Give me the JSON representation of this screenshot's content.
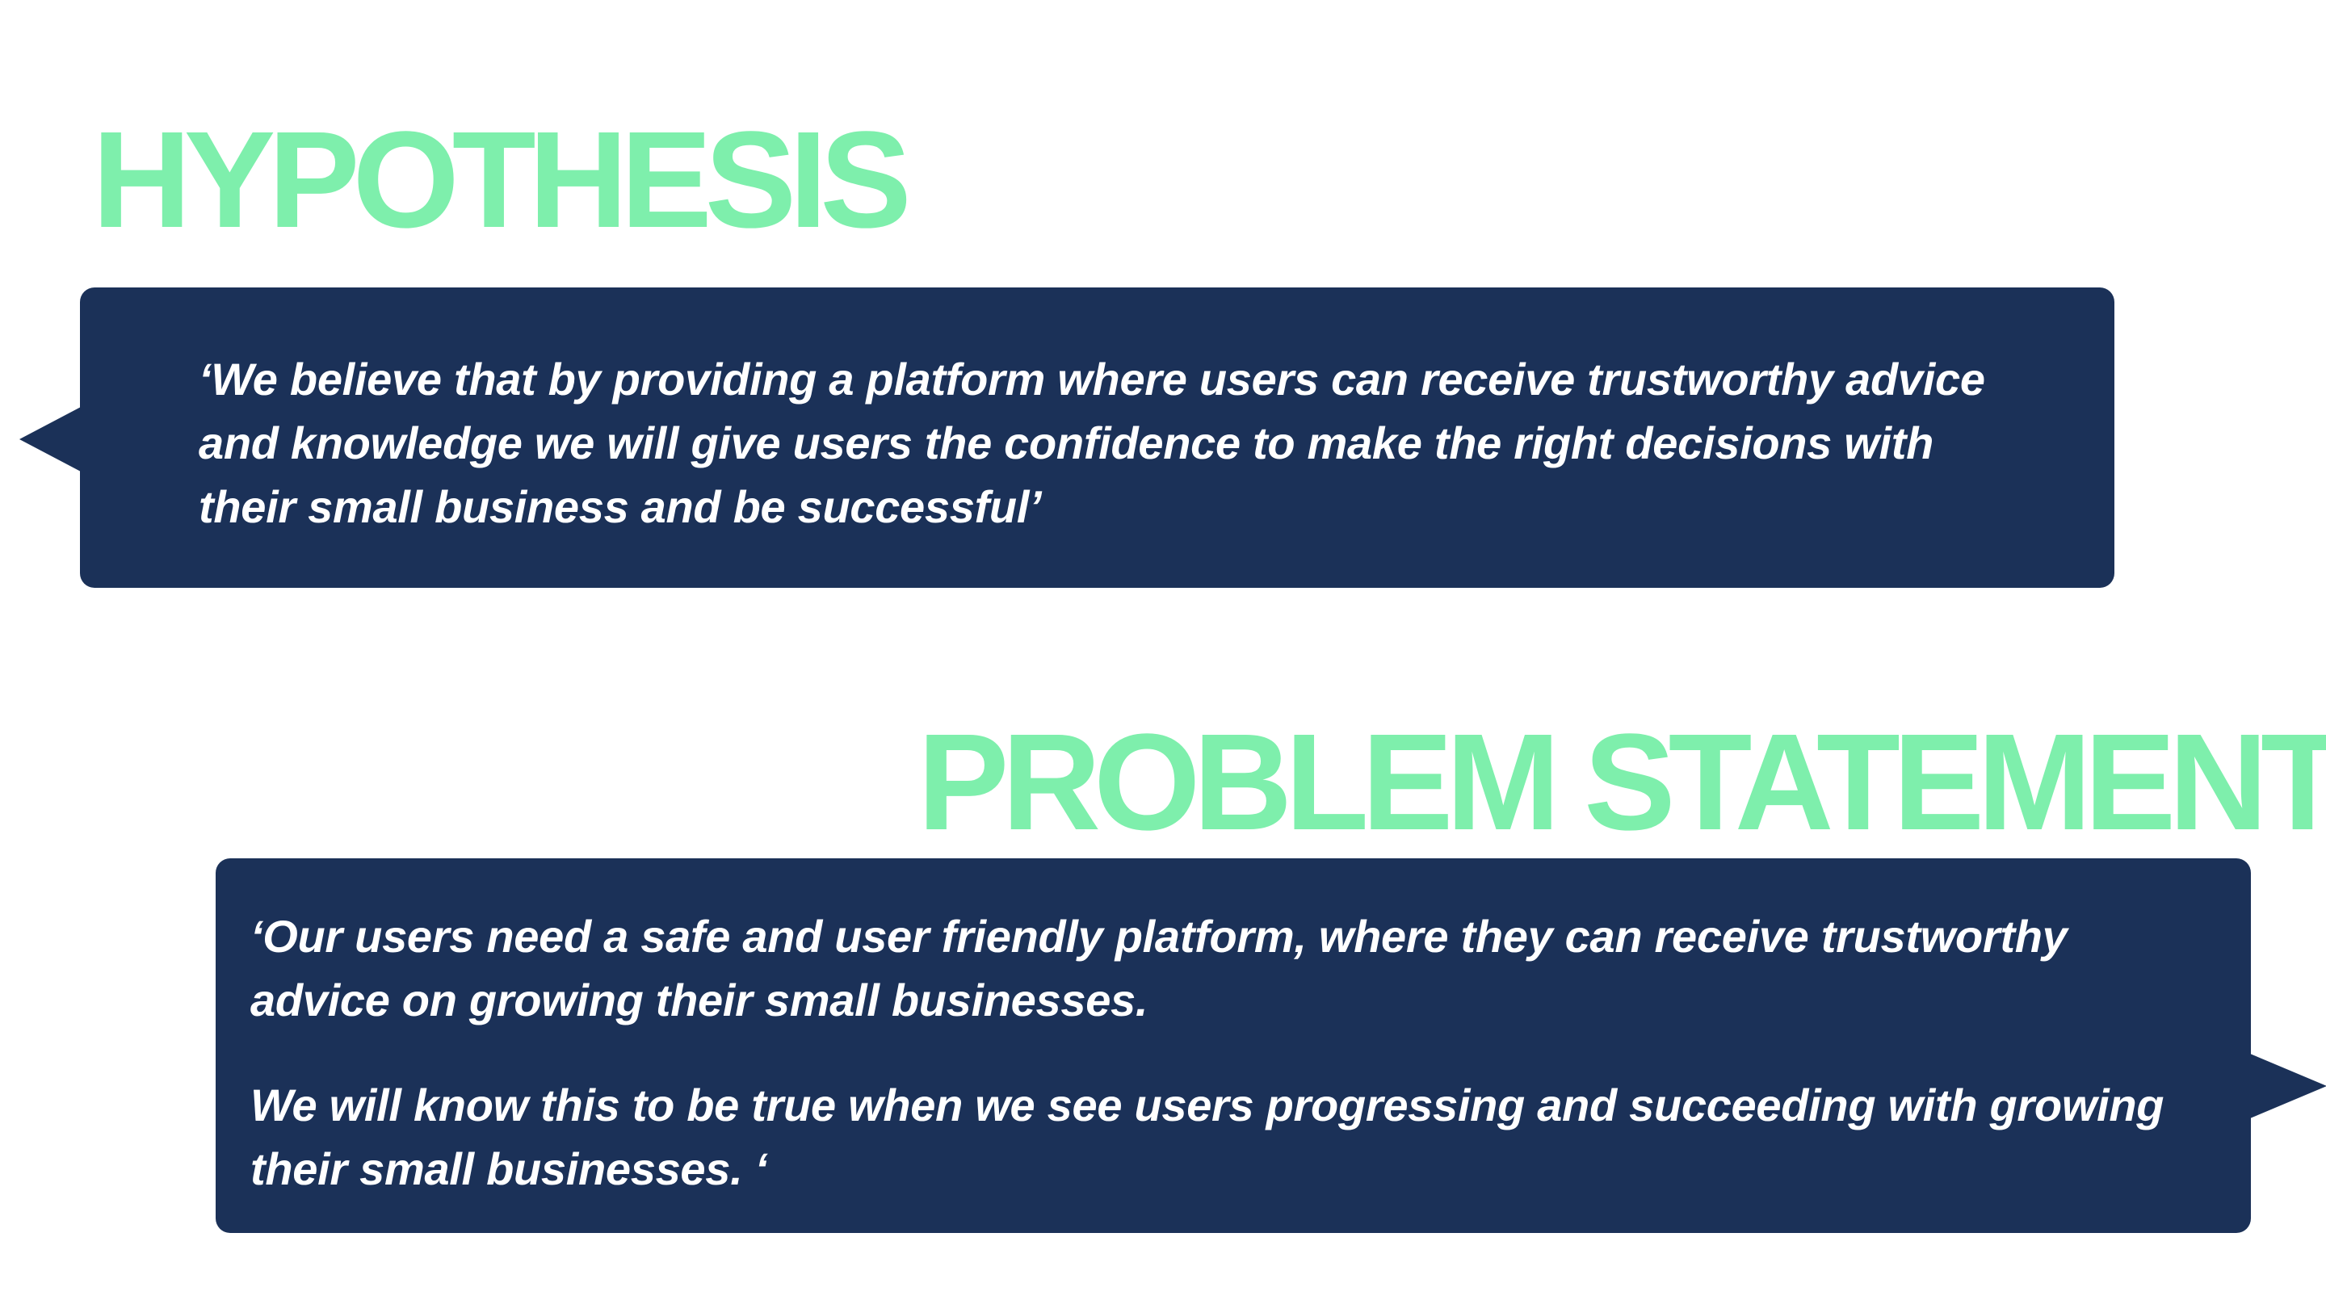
{
  "hypothesis": {
    "heading": "HYPOTHESIS",
    "quote": "‘We believe that by providing a platform where users can receive trustworthy advice and knowledge we will give users the confidence to make the right decisions with their small business and be successful’"
  },
  "problem_statement": {
    "heading": "PROBLEM STATEMENT",
    "paragraphs": [
      "‘Our users need a safe and user friendly platform, where they can receive trustworthy advice on growing their small businesses.",
      "We will know this to be true when we see users progressing and succeeding with growing their small businesses. ‘"
    ]
  },
  "colors": {
    "heading": "#7eefac",
    "bubble_background": "#1b3158",
    "bubble_text": "#ffffff",
    "page_background": "#ffffff"
  }
}
